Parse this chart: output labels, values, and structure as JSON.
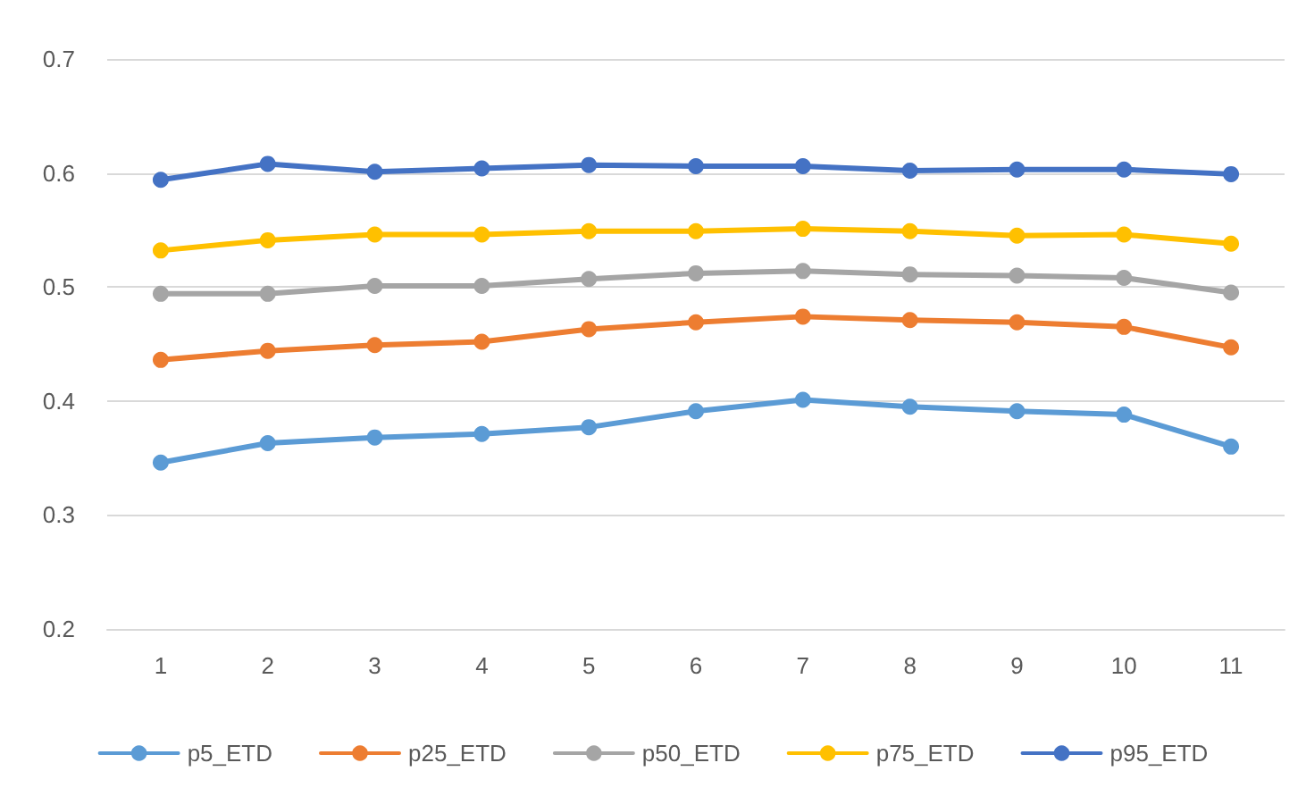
{
  "chart_data": {
    "type": "line",
    "categories": [
      "1",
      "2",
      "3",
      "4",
      "5",
      "6",
      "7",
      "8",
      "9",
      "10",
      "11"
    ],
    "series": [
      {
        "name": "p5_ETD",
        "color": "#5b9bd5",
        "values": [
          0.346,
          0.363,
          0.368,
          0.371,
          0.377,
          0.391,
          0.401,
          0.395,
          0.391,
          0.388,
          0.36
        ]
      },
      {
        "name": "p25_ETD",
        "color": "#ed7d31",
        "values": [
          0.436,
          0.444,
          0.449,
          0.452,
          0.463,
          0.469,
          0.474,
          0.471,
          0.469,
          0.465,
          0.447
        ]
      },
      {
        "name": "p50_ETD",
        "color": "#a5a5a5",
        "values": [
          0.494,
          0.494,
          0.501,
          0.501,
          0.507,
          0.512,
          0.514,
          0.511,
          0.51,
          0.508,
          0.495
        ]
      },
      {
        "name": "p75_ETD",
        "color": "#ffc000",
        "values": [
          0.532,
          0.541,
          0.546,
          0.546,
          0.549,
          0.549,
          0.551,
          0.549,
          0.545,
          0.546,
          0.538
        ]
      },
      {
        "name": "p95_ETD",
        "color": "#4472c4",
        "values": [
          0.594,
          0.608,
          0.601,
          0.604,
          0.607,
          0.606,
          0.606,
          0.602,
          0.603,
          0.603,
          0.599
        ]
      }
    ],
    "ylim": [
      0.2,
      0.7
    ],
    "yticks": [
      0.2,
      0.3,
      0.4,
      0.5,
      0.6,
      0.7
    ],
    "grid": "y",
    "legend": "bottom",
    "marker": "circle",
    "line_style": "solid"
  }
}
